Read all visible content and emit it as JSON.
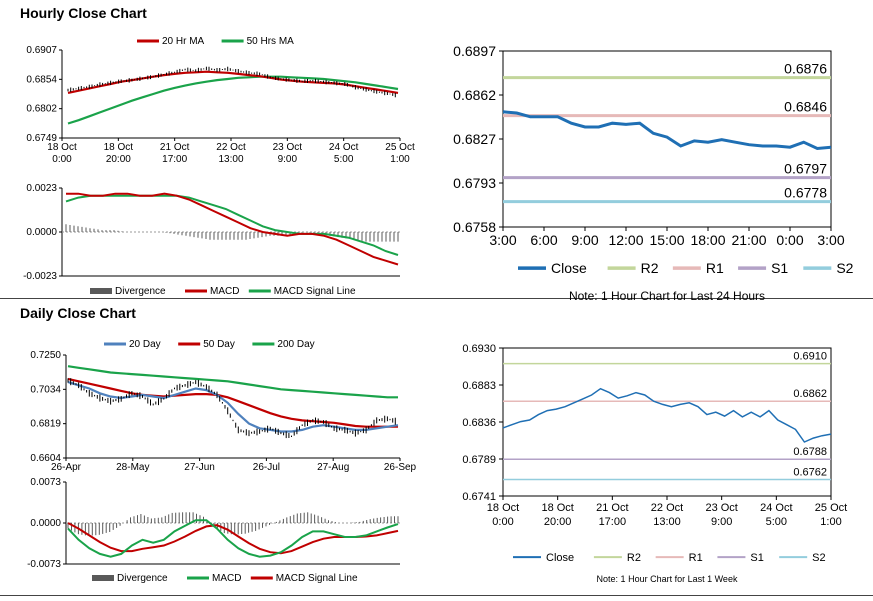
{
  "sections": {
    "hourly_title": "Hourly Close Chart",
    "daily_title": "Daily Close Chart"
  },
  "colors": {
    "close": "#1f6fb4",
    "ma20": "#c00000",
    "ma50": "#1aa34a",
    "r2": "#c3d69b",
    "r1": "#e6b9b8",
    "s1": "#b3a2c7",
    "s2": "#93cddd",
    "divergence": "#595959",
    "day20": "#4f81bd",
    "day50": "#c00000",
    "day200": "#1aa34a"
  },
  "chart_data": [
    {
      "id": "hourly_price",
      "type": "line",
      "title": "",
      "x_ticks": [
        "18 Oct\n0:00",
        "18 Oct\n20:00",
        "21 Oct\n17:00",
        "22 Oct\n13:00",
        "23 Oct\n9:00",
        "24 Oct\n5:00",
        "25 Oct\n1:00"
      ],
      "y_ticks": [
        "0.6907",
        "0.6854",
        "0.6802",
        "0.6749"
      ],
      "ylim": [
        0.6749,
        0.6907
      ],
      "legend": [
        "20 Hr MA",
        "50 Hrs MA"
      ],
      "series": [
        {
          "name": "Price",
          "values": [
            0.6835,
            0.6838,
            0.6841,
            0.6845,
            0.6848,
            0.6851,
            0.6853,
            0.6856,
            0.6859,
            0.6863,
            0.6867,
            0.6872,
            0.687,
            0.6874,
            0.6871,
            0.6873,
            0.6869,
            0.6866,
            0.6864,
            0.6858,
            0.6855,
            0.6853,
            0.6851,
            0.6852,
            0.685,
            0.6848,
            0.6846,
            0.684,
            0.6836,
            0.6832,
            0.6829,
            0.6825
          ]
        },
        {
          "name": "20 Hr MA",
          "values": [
            0.683,
            0.6834,
            0.6838,
            0.6842,
            0.6846,
            0.685,
            0.6853,
            0.6856,
            0.6859,
            0.6862,
            0.6864,
            0.6866,
            0.6867,
            0.6868,
            0.6867,
            0.6866,
            0.6864,
            0.6862,
            0.686,
            0.6857,
            0.6854,
            0.6852,
            0.685,
            0.6849,
            0.6848,
            0.6847,
            0.6845,
            0.6842,
            0.6839,
            0.6836,
            0.6833,
            0.683
          ]
        },
        {
          "name": "50 Hrs MA",
          "values": [
            0.6775,
            0.6781,
            0.6788,
            0.6795,
            0.6802,
            0.6809,
            0.6816,
            0.6822,
            0.6828,
            0.6834,
            0.6839,
            0.6843,
            0.6847,
            0.685,
            0.6853,
            0.6855,
            0.6857,
            0.6858,
            0.6859,
            0.6859,
            0.6859,
            0.6858,
            0.6857,
            0.6856,
            0.6855,
            0.6853,
            0.6851,
            0.6849,
            0.6846,
            0.6843,
            0.684,
            0.6837
          ]
        }
      ]
    },
    {
      "id": "hourly_macd",
      "type": "line",
      "y_ticks": [
        "0.0023",
        "0.0000",
        "-0.0023"
      ],
      "ylim": [
        -0.0023,
        0.0023
      ],
      "legend": [
        "Divergence",
        "MACD",
        "MACD Signal Line"
      ],
      "series": [
        {
          "name": "MACD",
          "values": [
            0.002,
            0.002,
            0.0019,
            0.0019,
            0.002,
            0.002,
            0.0019,
            0.0019,
            0.002,
            0.0019,
            0.0017,
            0.0014,
            0.0011,
            0.0008,
            0.0005,
            0.0002,
            0.0,
            -0.0001,
            -0.0002,
            -0.0001,
            -0.0001,
            -0.0002,
            -0.0004,
            -0.0007,
            -0.001,
            -0.0013,
            -0.0015,
            -0.0017
          ]
        },
        {
          "name": "MACD Signal Line",
          "values": [
            0.0016,
            0.0018,
            0.0019,
            0.0019,
            0.0019,
            0.0019,
            0.0019,
            0.0019,
            0.0019,
            0.0019,
            0.0018,
            0.0016,
            0.0014,
            0.0012,
            0.0009,
            0.0006,
            0.0003,
            0.0001,
            0.0,
            -0.0001,
            -0.0001,
            -0.0001,
            -0.0002,
            -0.0003,
            -0.0005,
            -0.0007,
            -0.001,
            -0.0012
          ]
        },
        {
          "name": "Divergence",
          "values": [
            0.0004,
            0.0003,
            0.0002,
            0.0001,
            0.0001,
            0.0,
            0.0,
            0.0,
            0.0,
            -0.0001,
            -0.0002,
            -0.0003,
            -0.0004,
            -0.0004,
            -0.0004,
            -0.0004,
            -0.0003,
            -0.0002,
            -0.0002,
            -0.0001,
            0.0,
            -0.0001,
            -0.0002,
            -0.0003,
            -0.0004,
            -0.0005,
            -0.0005,
            -0.0005
          ]
        }
      ]
    },
    {
      "id": "hourly_levels",
      "type": "line",
      "x_ticks": [
        "3:00",
        "6:00",
        "9:00",
        "12:00",
        "15:00",
        "18:00",
        "21:00",
        "0:00",
        "3:00"
      ],
      "y_ticks": [
        "0.6897",
        "0.6862",
        "0.6827",
        "0.6793",
        "0.6758"
      ],
      "ylim": [
        0.6758,
        0.6897
      ],
      "legend": [
        "Close",
        "R2",
        "R1",
        "S1",
        "S2"
      ],
      "note": "Note: 1 Hour Chart for Last 24 Hours",
      "levels": [
        {
          "name": "R2",
          "value": 0.6876,
          "label": "0.6876"
        },
        {
          "name": "R1",
          "value": 0.6846,
          "label": "0.6846"
        },
        {
          "name": "S1",
          "value": 0.6797,
          "label": "0.6797"
        },
        {
          "name": "S2",
          "value": 0.6778,
          "label": "0.6778"
        }
      ],
      "series": [
        {
          "name": "Close",
          "values": [
            0.6849,
            0.6848,
            0.6845,
            0.6845,
            0.6845,
            0.684,
            0.6837,
            0.6837,
            0.684,
            0.6839,
            0.684,
            0.6832,
            0.6829,
            0.6822,
            0.6826,
            0.6825,
            0.6827,
            0.6825,
            0.6823,
            0.6822,
            0.6822,
            0.6821,
            0.6825,
            0.682,
            0.6821
          ]
        }
      ]
    },
    {
      "id": "daily_price",
      "type": "line",
      "x_ticks": [
        "26-Apr",
        "28-May",
        "27-Jun",
        "26-Jul",
        "27-Aug",
        "26-Sep"
      ],
      "y_ticks": [
        "0.7250",
        "0.7034",
        "0.6819",
        "0.6604"
      ],
      "ylim": [
        0.6604,
        0.725
      ],
      "legend": [
        "20 Day",
        "50 Day",
        "200 Day"
      ],
      "series": [
        {
          "name": "Price",
          "values": [
            0.709,
            0.706,
            0.701,
            0.698,
            0.696,
            0.6975,
            0.701,
            0.699,
            0.694,
            0.6975,
            0.704,
            0.706,
            0.708,
            0.705,
            0.7,
            0.69,
            0.678,
            0.676,
            0.677,
            0.679,
            0.676,
            0.674,
            0.681,
            0.684,
            0.683,
            0.679,
            0.678,
            0.676,
            0.678,
            0.684,
            0.685,
            0.683
          ]
        },
        {
          "name": "20 Day",
          "values": [
            0.708,
            0.706,
            0.704,
            0.701,
            0.699,
            0.698,
            0.699,
            0.7,
            0.699,
            0.698,
            0.7,
            0.702,
            0.704,
            0.703,
            0.7,
            0.695,
            0.688,
            0.682,
            0.679,
            0.678,
            0.677,
            0.677,
            0.678,
            0.68,
            0.681,
            0.68,
            0.679,
            0.678,
            0.678,
            0.679,
            0.68,
            0.681
          ]
        },
        {
          "name": "50 Day",
          "values": [
            0.71,
            0.7085,
            0.707,
            0.7055,
            0.704,
            0.7025,
            0.701,
            0.7,
            0.6995,
            0.699,
            0.6995,
            0.7,
            0.7005,
            0.7005,
            0.7,
            0.6985,
            0.696,
            0.6935,
            0.691,
            0.6885,
            0.6865,
            0.685,
            0.684,
            0.6835,
            0.683,
            0.6825,
            0.6815,
            0.6805,
            0.68,
            0.68,
            0.68,
            0.68
          ]
        },
        {
          "name": "200 Day",
          "values": [
            0.718,
            0.717,
            0.716,
            0.715,
            0.714,
            0.7135,
            0.713,
            0.7125,
            0.712,
            0.7115,
            0.711,
            0.7105,
            0.71,
            0.7095,
            0.709,
            0.7085,
            0.7075,
            0.7065,
            0.7055,
            0.7045,
            0.7035,
            0.703,
            0.7025,
            0.702,
            0.7015,
            0.701,
            0.7005,
            0.7,
            0.6995,
            0.699,
            0.6985,
            0.6985
          ]
        }
      ]
    },
    {
      "id": "daily_macd",
      "type": "line",
      "y_ticks": [
        "0.0073",
        "0.0000",
        "-0.0073"
      ],
      "ylim": [
        -0.0073,
        0.0073
      ],
      "legend": [
        "Divergence",
        "MACD",
        "MACD Signal Line"
      ],
      "series": [
        {
          "name": "MACD",
          "values": [
            -0.001,
            -0.003,
            -0.0045,
            -0.0055,
            -0.006,
            -0.0055,
            -0.004,
            -0.003,
            -0.0035,
            -0.003,
            -0.0015,
            -0.0005,
            0.0005,
            0.0005,
            -0.001,
            -0.003,
            -0.0045,
            -0.0055,
            -0.006,
            -0.0058,
            -0.0052,
            -0.004,
            -0.0025,
            -0.0015,
            -0.0015,
            -0.002,
            -0.0025,
            -0.0025,
            -0.0022,
            -0.0015,
            -0.0008,
            -0.0002
          ]
        },
        {
          "name": "MACD Signal Line",
          "values": [
            0.0,
            -0.001,
            -0.0022,
            -0.0034,
            -0.0044,
            -0.005,
            -0.005,
            -0.0046,
            -0.0043,
            -0.004,
            -0.0033,
            -0.0024,
            -0.0014,
            -0.0006,
            -0.0004,
            -0.0012,
            -0.0024,
            -0.0036,
            -0.0046,
            -0.0052,
            -0.0054,
            -0.005,
            -0.0042,
            -0.0034,
            -0.0028,
            -0.0025,
            -0.0025,
            -0.0025,
            -0.0024,
            -0.0022,
            -0.0018,
            -0.0014
          ]
        },
        {
          "name": "Divergence",
          "values": [
            -0.001,
            -0.002,
            -0.0023,
            -0.0021,
            -0.0016,
            -0.0005,
            0.001,
            0.0016,
            0.0008,
            0.001,
            0.0018,
            0.0019,
            0.0019,
            0.0011,
            -0.0006,
            -0.0018,
            -0.0021,
            -0.0019,
            -0.0014,
            -0.0006,
            0.0002,
            0.001,
            0.0017,
            0.0019,
            0.0013,
            0.0005,
            0.0,
            0.0,
            0.0002,
            0.0007,
            0.001,
            0.0012
          ]
        }
      ]
    },
    {
      "id": "weekly_levels",
      "type": "line",
      "x_ticks": [
        "18 Oct\n0:00",
        "18 Oct\n20:00",
        "21 Oct\n17:00",
        "22 Oct\n13:00",
        "23 Oct\n9:00",
        "24 Oct\n5:00",
        "25 Oct\n1:00"
      ],
      "y_ticks": [
        "0.6930",
        "0.6883",
        "0.6836",
        "0.6789",
        "0.6741"
      ],
      "ylim": [
        0.6741,
        0.693
      ],
      "legend": [
        "Close",
        "R2",
        "R1",
        "S1",
        "S2"
      ],
      "note": "Note: 1 Hour Chart for Last 1 Week",
      "levels": [
        {
          "name": "R2",
          "value": 0.691,
          "label": "0.6910"
        },
        {
          "name": "R1",
          "value": 0.6862,
          "label": "0.6862"
        },
        {
          "name": "S1",
          "value": 0.6788,
          "label": "0.6788"
        },
        {
          "name": "S2",
          "value": 0.6762,
          "label": "0.6762"
        }
      ],
      "series": [
        {
          "name": "Close",
          "values": [
            0.6828,
            0.6832,
            0.6836,
            0.6838,
            0.6845,
            0.685,
            0.6852,
            0.6855,
            0.686,
            0.6865,
            0.687,
            0.6878,
            0.6873,
            0.6866,
            0.6869,
            0.6873,
            0.687,
            0.6862,
            0.6858,
            0.6855,
            0.6858,
            0.686,
            0.6855,
            0.6845,
            0.6848,
            0.6843,
            0.685,
            0.6842,
            0.6848,
            0.6842,
            0.685,
            0.6838,
            0.6832,
            0.6826,
            0.681,
            0.6815,
            0.6818,
            0.682
          ]
        }
      ]
    }
  ]
}
